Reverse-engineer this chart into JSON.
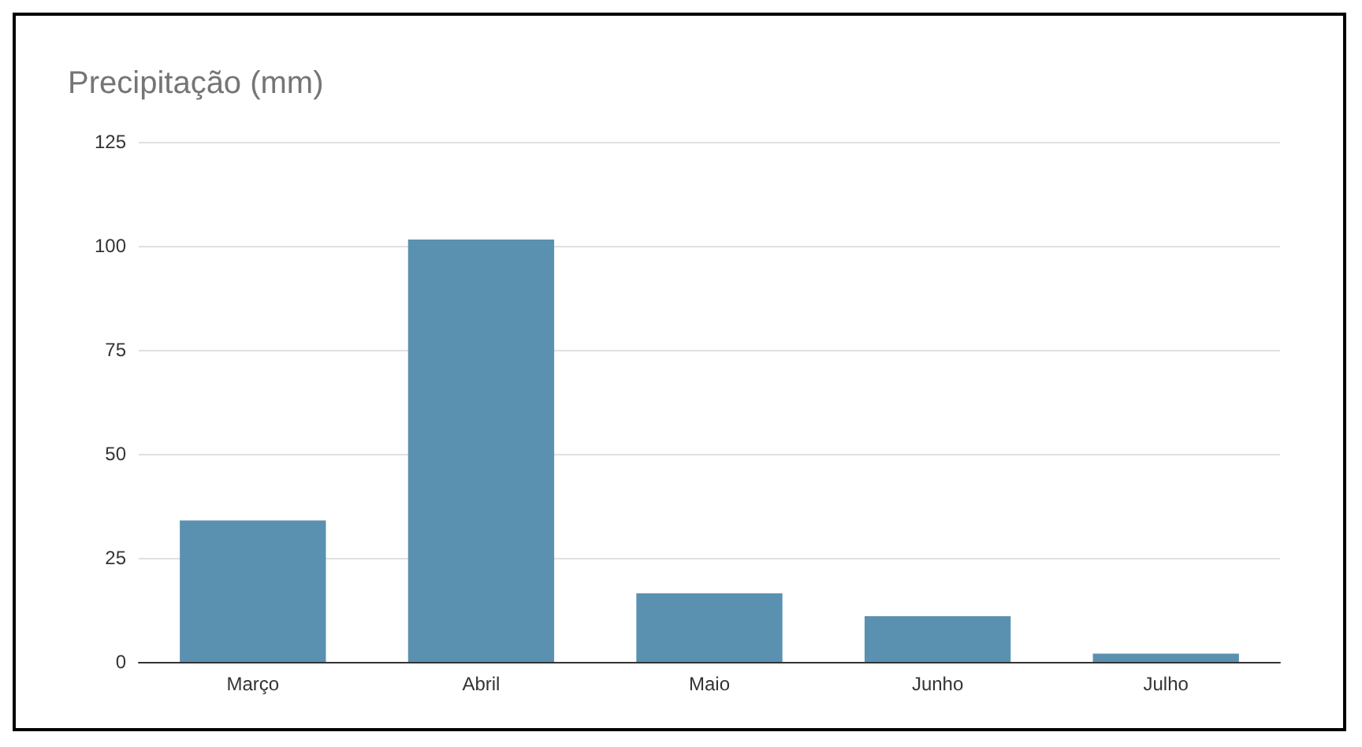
{
  "chart_data": {
    "type": "bar",
    "title": "Precipitação (mm)",
    "categories": [
      "Março",
      "Abril",
      "Maio",
      "Junho",
      "Julho"
    ],
    "values": [
      34,
      101.5,
      16.5,
      11,
      2
    ],
    "color": "#5b91b0",
    "ylim": [
      0,
      125
    ],
    "yticks": [
      0,
      25,
      50,
      75,
      100,
      125
    ],
    "grid": "y"
  }
}
